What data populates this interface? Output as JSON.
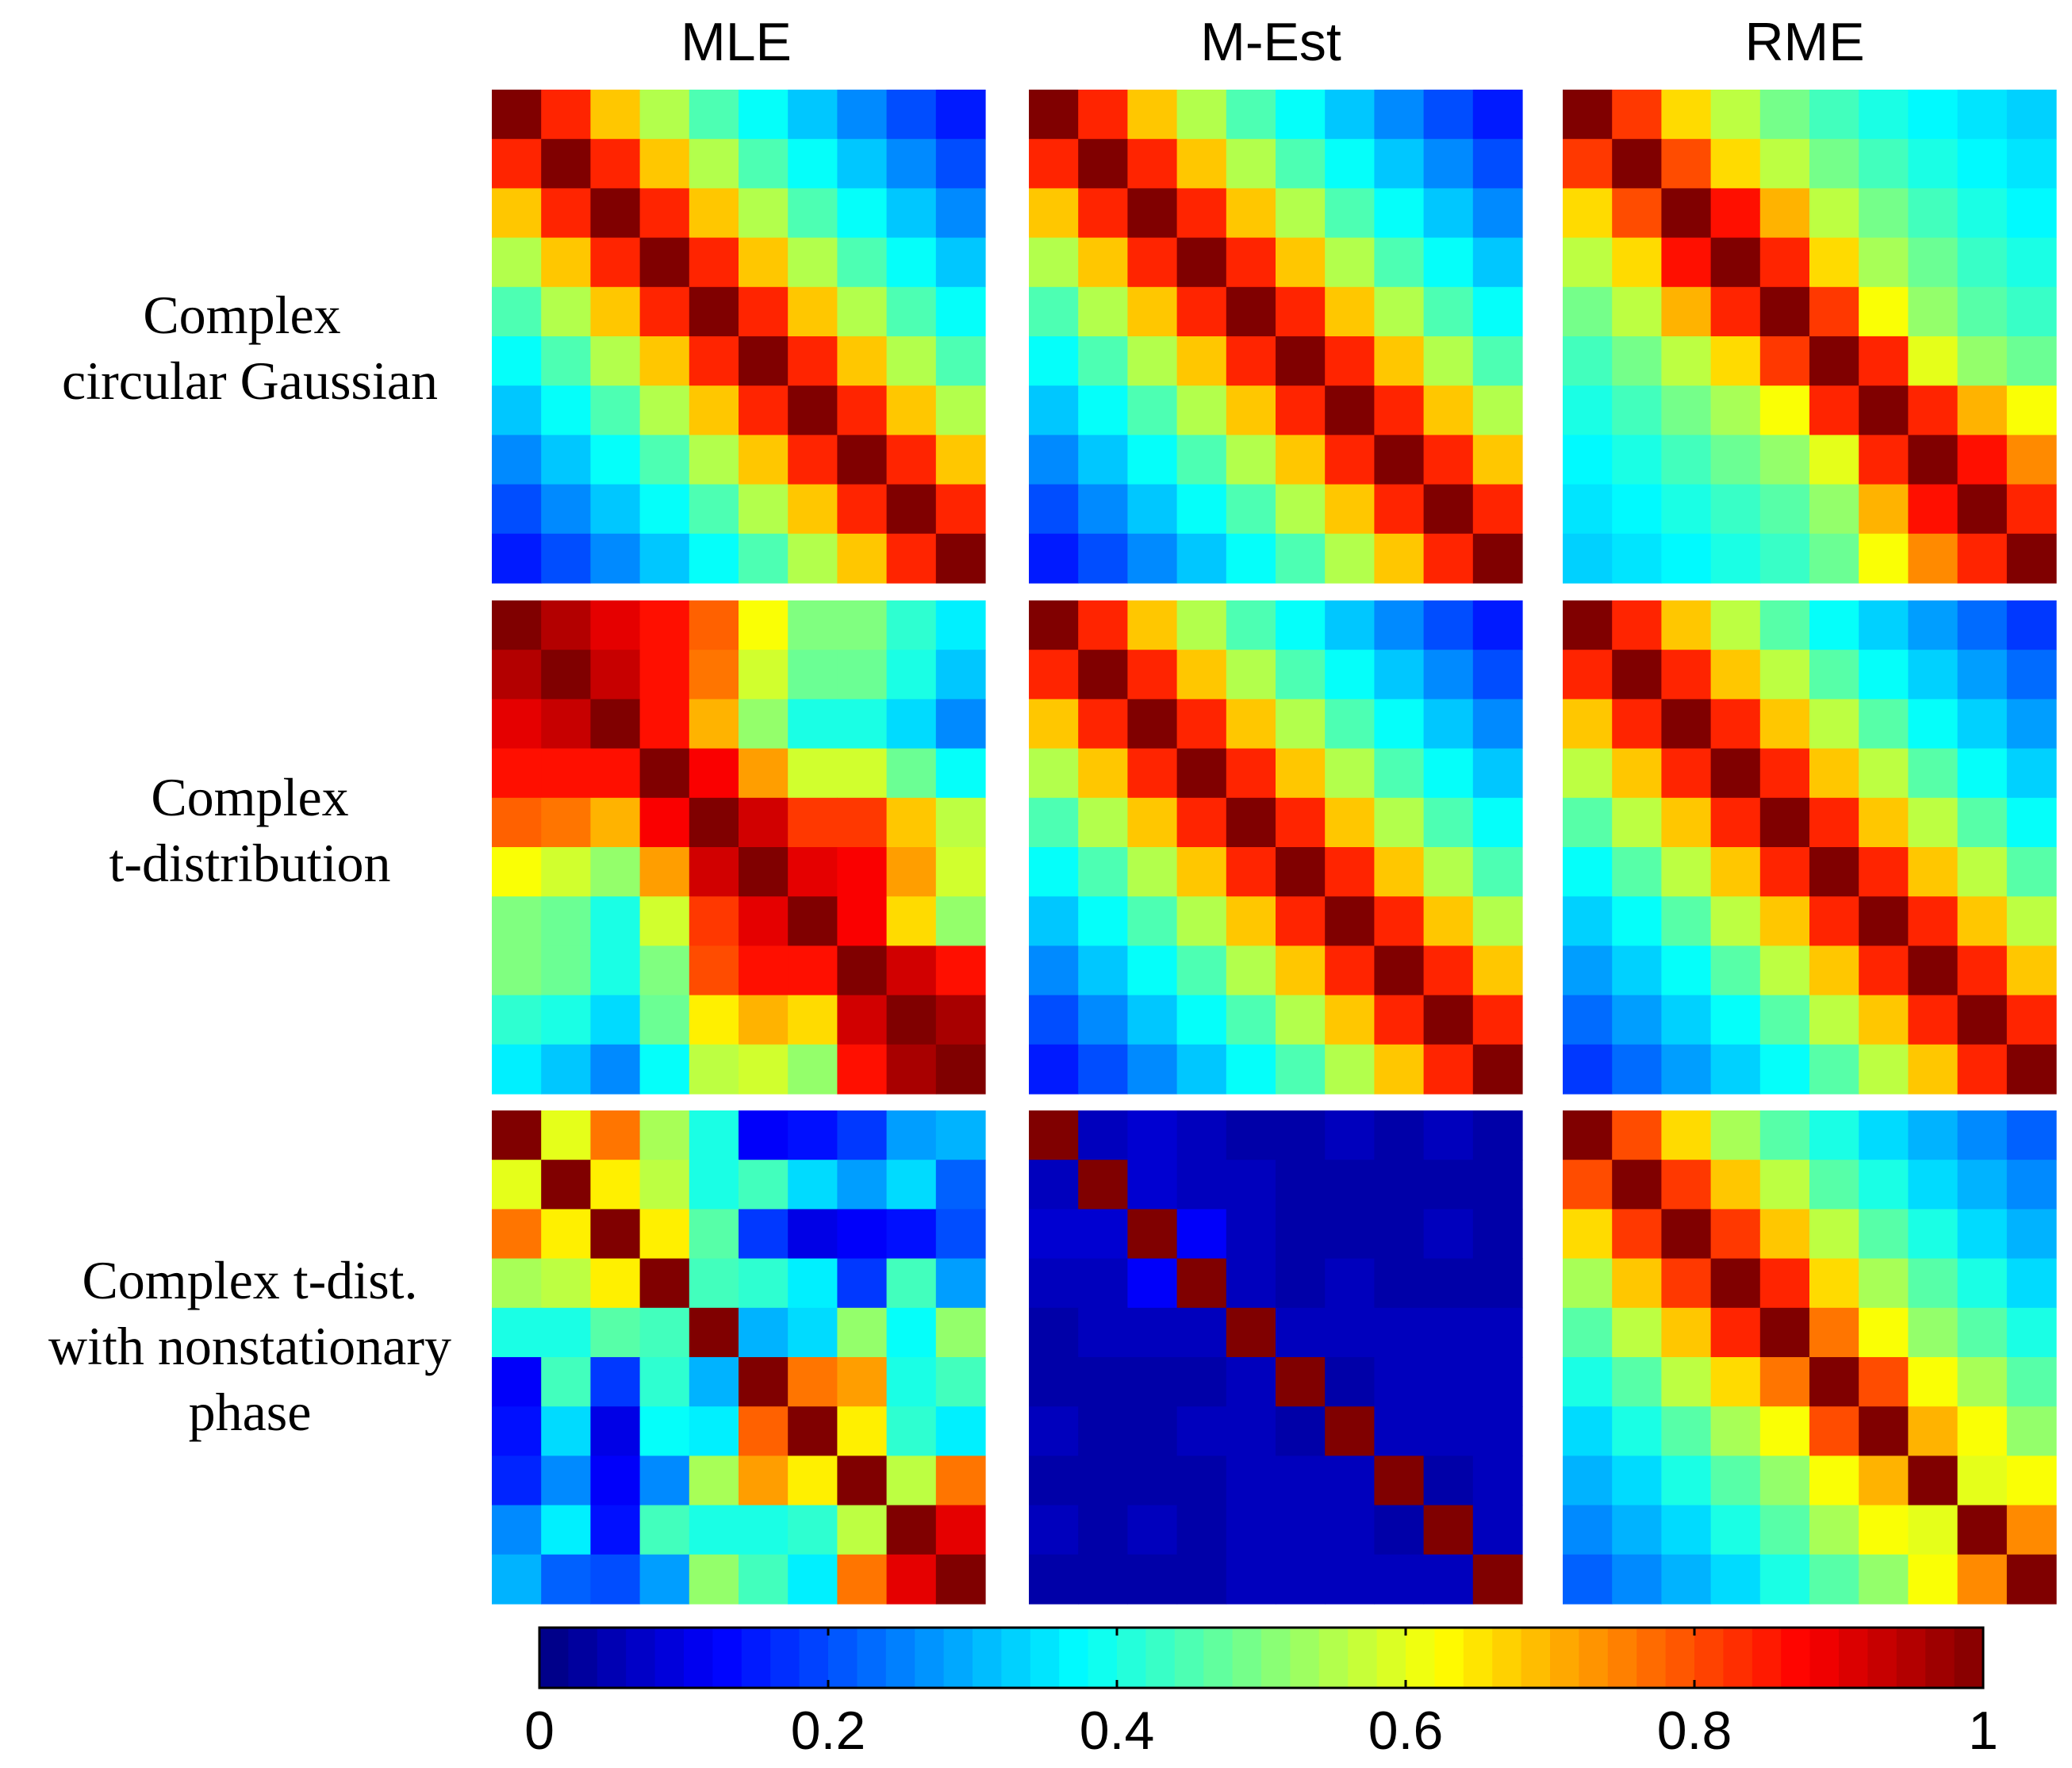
{
  "chart_data": {
    "type": "heatmap",
    "columns": [
      "MLE",
      "M-Est",
      "RME"
    ],
    "rows": [
      [
        "Complex",
        "circular Gaussian"
      ],
      [
        "Complex",
        "t-distribution"
      ],
      [
        "Complex t-dist.",
        "with nonstationary",
        "phase"
      ]
    ],
    "matrix_size": 10,
    "colormap": "jet",
    "colorbar": {
      "range": [
        0,
        1
      ],
      "ticks": [
        0,
        0.2,
        0.4,
        0.6,
        0.8,
        1
      ],
      "tick_labels": [
        "0",
        "0.2",
        "0.4",
        "0.6",
        "0.8",
        "1"
      ],
      "levels": 50
    },
    "matrices": [
      [
        [
          [
            1.0,
            0.84,
            0.68,
            0.55,
            0.45,
            0.38,
            0.32,
            0.26,
            0.2,
            0.15
          ],
          [
            0.84,
            1.0,
            0.84,
            0.68,
            0.55,
            0.45,
            0.38,
            0.32,
            0.26,
            0.2
          ],
          [
            0.68,
            0.84,
            1.0,
            0.84,
            0.68,
            0.55,
            0.45,
            0.38,
            0.32,
            0.26
          ],
          [
            0.55,
            0.68,
            0.84,
            1.0,
            0.84,
            0.68,
            0.55,
            0.45,
            0.38,
            0.32
          ],
          [
            0.45,
            0.55,
            0.68,
            0.84,
            1.0,
            0.84,
            0.68,
            0.55,
            0.45,
            0.38
          ],
          [
            0.38,
            0.45,
            0.55,
            0.68,
            0.84,
            1.0,
            0.84,
            0.68,
            0.55,
            0.45
          ],
          [
            0.32,
            0.38,
            0.45,
            0.55,
            0.68,
            0.84,
            1.0,
            0.84,
            0.68,
            0.55
          ],
          [
            0.26,
            0.32,
            0.38,
            0.45,
            0.55,
            0.68,
            0.84,
            1.0,
            0.84,
            0.68
          ],
          [
            0.2,
            0.26,
            0.32,
            0.38,
            0.45,
            0.55,
            0.68,
            0.84,
            1.0,
            0.84
          ],
          [
            0.15,
            0.2,
            0.26,
            0.32,
            0.38,
            0.45,
            0.55,
            0.68,
            0.84,
            1.0
          ]
        ],
        [
          [
            1.0,
            0.84,
            0.68,
            0.55,
            0.45,
            0.38,
            0.32,
            0.26,
            0.2,
            0.15
          ],
          [
            0.84,
            1.0,
            0.84,
            0.68,
            0.55,
            0.45,
            0.38,
            0.32,
            0.26,
            0.2
          ],
          [
            0.68,
            0.84,
            1.0,
            0.84,
            0.68,
            0.55,
            0.45,
            0.38,
            0.32,
            0.26
          ],
          [
            0.55,
            0.68,
            0.84,
            1.0,
            0.84,
            0.68,
            0.55,
            0.45,
            0.38,
            0.32
          ],
          [
            0.45,
            0.55,
            0.68,
            0.84,
            1.0,
            0.84,
            0.68,
            0.55,
            0.45,
            0.38
          ],
          [
            0.38,
            0.45,
            0.55,
            0.68,
            0.84,
            1.0,
            0.84,
            0.68,
            0.55,
            0.45
          ],
          [
            0.32,
            0.38,
            0.45,
            0.55,
            0.68,
            0.84,
            1.0,
            0.84,
            0.68,
            0.55
          ],
          [
            0.26,
            0.32,
            0.38,
            0.45,
            0.55,
            0.68,
            0.84,
            1.0,
            0.84,
            0.68
          ],
          [
            0.2,
            0.26,
            0.32,
            0.38,
            0.45,
            0.55,
            0.68,
            0.84,
            1.0,
            0.84
          ],
          [
            0.15,
            0.2,
            0.26,
            0.32,
            0.38,
            0.45,
            0.55,
            0.68,
            0.84,
            1.0
          ]
        ],
        [
          [
            1.0,
            0.82,
            0.66,
            0.56,
            0.49,
            0.44,
            0.4,
            0.37,
            0.35,
            0.33
          ],
          [
            0.82,
            1.0,
            0.8,
            0.66,
            0.56,
            0.49,
            0.44,
            0.4,
            0.37,
            0.35
          ],
          [
            0.66,
            0.8,
            1.0,
            0.86,
            0.7,
            0.56,
            0.49,
            0.44,
            0.4,
            0.37
          ],
          [
            0.56,
            0.66,
            0.86,
            1.0,
            0.84,
            0.66,
            0.54,
            0.48,
            0.43,
            0.4
          ],
          [
            0.49,
            0.56,
            0.7,
            0.84,
            1.0,
            0.82,
            0.62,
            0.52,
            0.46,
            0.43
          ],
          [
            0.44,
            0.49,
            0.56,
            0.66,
            0.82,
            1.0,
            0.84,
            0.6,
            0.52,
            0.48
          ],
          [
            0.4,
            0.44,
            0.49,
            0.54,
            0.62,
            0.84,
            1.0,
            0.84,
            0.7,
            0.62
          ],
          [
            0.37,
            0.4,
            0.44,
            0.48,
            0.52,
            0.6,
            0.84,
            1.0,
            0.86,
            0.74
          ],
          [
            0.35,
            0.37,
            0.4,
            0.43,
            0.46,
            0.52,
            0.7,
            0.86,
            1.0,
            0.84
          ],
          [
            0.33,
            0.35,
            0.37,
            0.4,
            0.43,
            0.48,
            0.62,
            0.74,
            0.84,
            1.0
          ]
        ]
      ],
      [
        [
          [
            1.0,
            0.95,
            0.9,
            0.86,
            0.78,
            0.62,
            0.5,
            0.5,
            0.42,
            0.36
          ],
          [
            0.95,
            1.0,
            0.93,
            0.86,
            0.76,
            0.58,
            0.48,
            0.48,
            0.4,
            0.32
          ],
          [
            0.9,
            0.93,
            1.0,
            0.86,
            0.7,
            0.52,
            0.4,
            0.4,
            0.34,
            0.26
          ],
          [
            0.86,
            0.86,
            0.86,
            1.0,
            0.88,
            0.72,
            0.58,
            0.58,
            0.48,
            0.38
          ],
          [
            0.78,
            0.76,
            0.7,
            0.88,
            1.0,
            0.92,
            0.82,
            0.82,
            0.68,
            0.56
          ],
          [
            0.62,
            0.58,
            0.52,
            0.72,
            0.92,
            1.0,
            0.9,
            0.88,
            0.72,
            0.58
          ],
          [
            0.5,
            0.48,
            0.4,
            0.58,
            0.82,
            0.9,
            1.0,
            0.88,
            0.66,
            0.52
          ],
          [
            0.5,
            0.48,
            0.4,
            0.5,
            0.8,
            0.86,
            0.86,
            1.0,
            0.92,
            0.86
          ],
          [
            0.42,
            0.4,
            0.34,
            0.48,
            0.64,
            0.7,
            0.66,
            0.92,
            1.0,
            0.96
          ],
          [
            0.36,
            0.32,
            0.26,
            0.38,
            0.56,
            0.58,
            0.52,
            0.86,
            0.96,
            1.0
          ]
        ],
        [
          [
            1.0,
            0.84,
            0.68,
            0.55,
            0.45,
            0.38,
            0.32,
            0.26,
            0.2,
            0.15
          ],
          [
            0.84,
            1.0,
            0.84,
            0.68,
            0.55,
            0.45,
            0.38,
            0.32,
            0.26,
            0.2
          ],
          [
            0.68,
            0.84,
            1.0,
            0.84,
            0.68,
            0.55,
            0.45,
            0.38,
            0.32,
            0.26
          ],
          [
            0.55,
            0.68,
            0.84,
            1.0,
            0.84,
            0.68,
            0.55,
            0.45,
            0.38,
            0.32
          ],
          [
            0.45,
            0.55,
            0.68,
            0.84,
            1.0,
            0.84,
            0.68,
            0.55,
            0.45,
            0.38
          ],
          [
            0.38,
            0.45,
            0.55,
            0.68,
            0.84,
            1.0,
            0.84,
            0.68,
            0.55,
            0.45
          ],
          [
            0.32,
            0.38,
            0.45,
            0.55,
            0.68,
            0.84,
            1.0,
            0.84,
            0.68,
            0.55
          ],
          [
            0.26,
            0.32,
            0.38,
            0.45,
            0.55,
            0.68,
            0.84,
            1.0,
            0.84,
            0.68
          ],
          [
            0.2,
            0.26,
            0.32,
            0.38,
            0.45,
            0.55,
            0.68,
            0.84,
            1.0,
            0.84
          ],
          [
            0.15,
            0.2,
            0.26,
            0.32,
            0.38,
            0.45,
            0.55,
            0.68,
            0.84,
            1.0
          ]
        ],
        [
          [
            1.0,
            0.84,
            0.68,
            0.56,
            0.46,
            0.38,
            0.33,
            0.28,
            0.23,
            0.18
          ],
          [
            0.84,
            1.0,
            0.84,
            0.68,
            0.56,
            0.46,
            0.38,
            0.33,
            0.28,
            0.23
          ],
          [
            0.68,
            0.84,
            1.0,
            0.84,
            0.68,
            0.56,
            0.46,
            0.38,
            0.33,
            0.28
          ],
          [
            0.56,
            0.68,
            0.84,
            1.0,
            0.84,
            0.68,
            0.56,
            0.46,
            0.38,
            0.33
          ],
          [
            0.46,
            0.56,
            0.68,
            0.84,
            1.0,
            0.84,
            0.68,
            0.56,
            0.46,
            0.38
          ],
          [
            0.38,
            0.46,
            0.56,
            0.68,
            0.84,
            1.0,
            0.84,
            0.68,
            0.56,
            0.46
          ],
          [
            0.33,
            0.38,
            0.46,
            0.56,
            0.68,
            0.84,
            1.0,
            0.84,
            0.68,
            0.56
          ],
          [
            0.28,
            0.33,
            0.38,
            0.46,
            0.56,
            0.68,
            0.84,
            1.0,
            0.84,
            0.68
          ],
          [
            0.23,
            0.28,
            0.33,
            0.38,
            0.46,
            0.56,
            0.68,
            0.84,
            1.0,
            0.84
          ],
          [
            0.18,
            0.23,
            0.28,
            0.33,
            0.38,
            0.46,
            0.56,
            0.68,
            0.84,
            1.0
          ]
        ]
      ],
      [
        [
          [
            1.0,
            0.6,
            0.76,
            0.54,
            0.4,
            0.12,
            0.14,
            0.18,
            0.28,
            0.3
          ],
          [
            0.6,
            1.0,
            0.64,
            0.56,
            0.4,
            0.44,
            0.34,
            0.28,
            0.34,
            0.22
          ],
          [
            0.76,
            0.64,
            1.0,
            0.64,
            0.46,
            0.18,
            0.1,
            0.12,
            0.14,
            0.2
          ],
          [
            0.54,
            0.56,
            0.64,
            1.0,
            0.44,
            0.42,
            0.36,
            0.18,
            0.44,
            0.28
          ],
          [
            0.4,
            0.4,
            0.46,
            0.44,
            1.0,
            0.3,
            0.34,
            0.52,
            0.38,
            0.52
          ],
          [
            0.12,
            0.44,
            0.18,
            0.42,
            0.3,
            1.0,
            0.76,
            0.72,
            0.4,
            0.44
          ],
          [
            0.14,
            0.34,
            0.1,
            0.38,
            0.36,
            0.78,
            1.0,
            0.64,
            0.42,
            0.36
          ],
          [
            0.16,
            0.26,
            0.12,
            0.26,
            0.54,
            0.72,
            0.64,
            1.0,
            0.56,
            0.76
          ],
          [
            0.26,
            0.36,
            0.14,
            0.44,
            0.4,
            0.4,
            0.42,
            0.56,
            1.0,
            0.9
          ],
          [
            0.3,
            0.22,
            0.2,
            0.28,
            0.52,
            0.44,
            0.36,
            0.76,
            0.9,
            1.0
          ]
        ],
        [
          [
            1.0,
            0.06,
            0.08,
            0.06,
            0.04,
            0.04,
            0.06,
            0.04,
            0.06,
            0.04
          ],
          [
            0.06,
            1.0,
            0.08,
            0.06,
            0.06,
            0.04,
            0.04,
            0.04,
            0.04,
            0.04
          ],
          [
            0.08,
            0.08,
            1.0,
            0.12,
            0.06,
            0.04,
            0.04,
            0.04,
            0.06,
            0.04
          ],
          [
            0.06,
            0.06,
            0.12,
            1.0,
            0.06,
            0.04,
            0.06,
            0.04,
            0.04,
            0.04
          ],
          [
            0.04,
            0.06,
            0.06,
            0.06,
            1.0,
            0.06,
            0.06,
            0.06,
            0.06,
            0.06
          ],
          [
            0.04,
            0.04,
            0.04,
            0.04,
            0.06,
            1.0,
            0.04,
            0.06,
            0.06,
            0.06
          ],
          [
            0.06,
            0.04,
            0.04,
            0.06,
            0.06,
            0.04,
            1.0,
            0.06,
            0.06,
            0.06
          ],
          [
            0.04,
            0.04,
            0.04,
            0.04,
            0.06,
            0.06,
            0.06,
            1.0,
            0.04,
            0.06
          ],
          [
            0.06,
            0.04,
            0.06,
            0.04,
            0.06,
            0.06,
            0.06,
            0.04,
            1.0,
            0.06
          ],
          [
            0.04,
            0.04,
            0.04,
            0.04,
            0.06,
            0.06,
            0.06,
            0.06,
            0.06,
            1.0
          ]
        ],
        [
          [
            1.0,
            0.8,
            0.66,
            0.54,
            0.46,
            0.4,
            0.34,
            0.3,
            0.26,
            0.22
          ],
          [
            0.8,
            1.0,
            0.82,
            0.68,
            0.56,
            0.46,
            0.4,
            0.34,
            0.3,
            0.26
          ],
          [
            0.66,
            0.82,
            1.0,
            0.82,
            0.68,
            0.56,
            0.46,
            0.4,
            0.34,
            0.3
          ],
          [
            0.54,
            0.68,
            0.82,
            1.0,
            0.84,
            0.66,
            0.54,
            0.46,
            0.4,
            0.34
          ],
          [
            0.46,
            0.56,
            0.68,
            0.84,
            1.0,
            0.76,
            0.62,
            0.52,
            0.46,
            0.4
          ],
          [
            0.4,
            0.46,
            0.56,
            0.66,
            0.76,
            1.0,
            0.8,
            0.62,
            0.54,
            0.46
          ],
          [
            0.34,
            0.4,
            0.46,
            0.54,
            0.62,
            0.8,
            1.0,
            0.7,
            0.62,
            0.52
          ],
          [
            0.3,
            0.34,
            0.4,
            0.46,
            0.52,
            0.62,
            0.7,
            1.0,
            0.6,
            0.62
          ],
          [
            0.26,
            0.3,
            0.34,
            0.4,
            0.46,
            0.54,
            0.62,
            0.6,
            1.0,
            0.74
          ],
          [
            0.22,
            0.26,
            0.3,
            0.34,
            0.4,
            0.46,
            0.52,
            0.62,
            0.74,
            1.0
          ]
        ]
      ]
    ]
  }
}
